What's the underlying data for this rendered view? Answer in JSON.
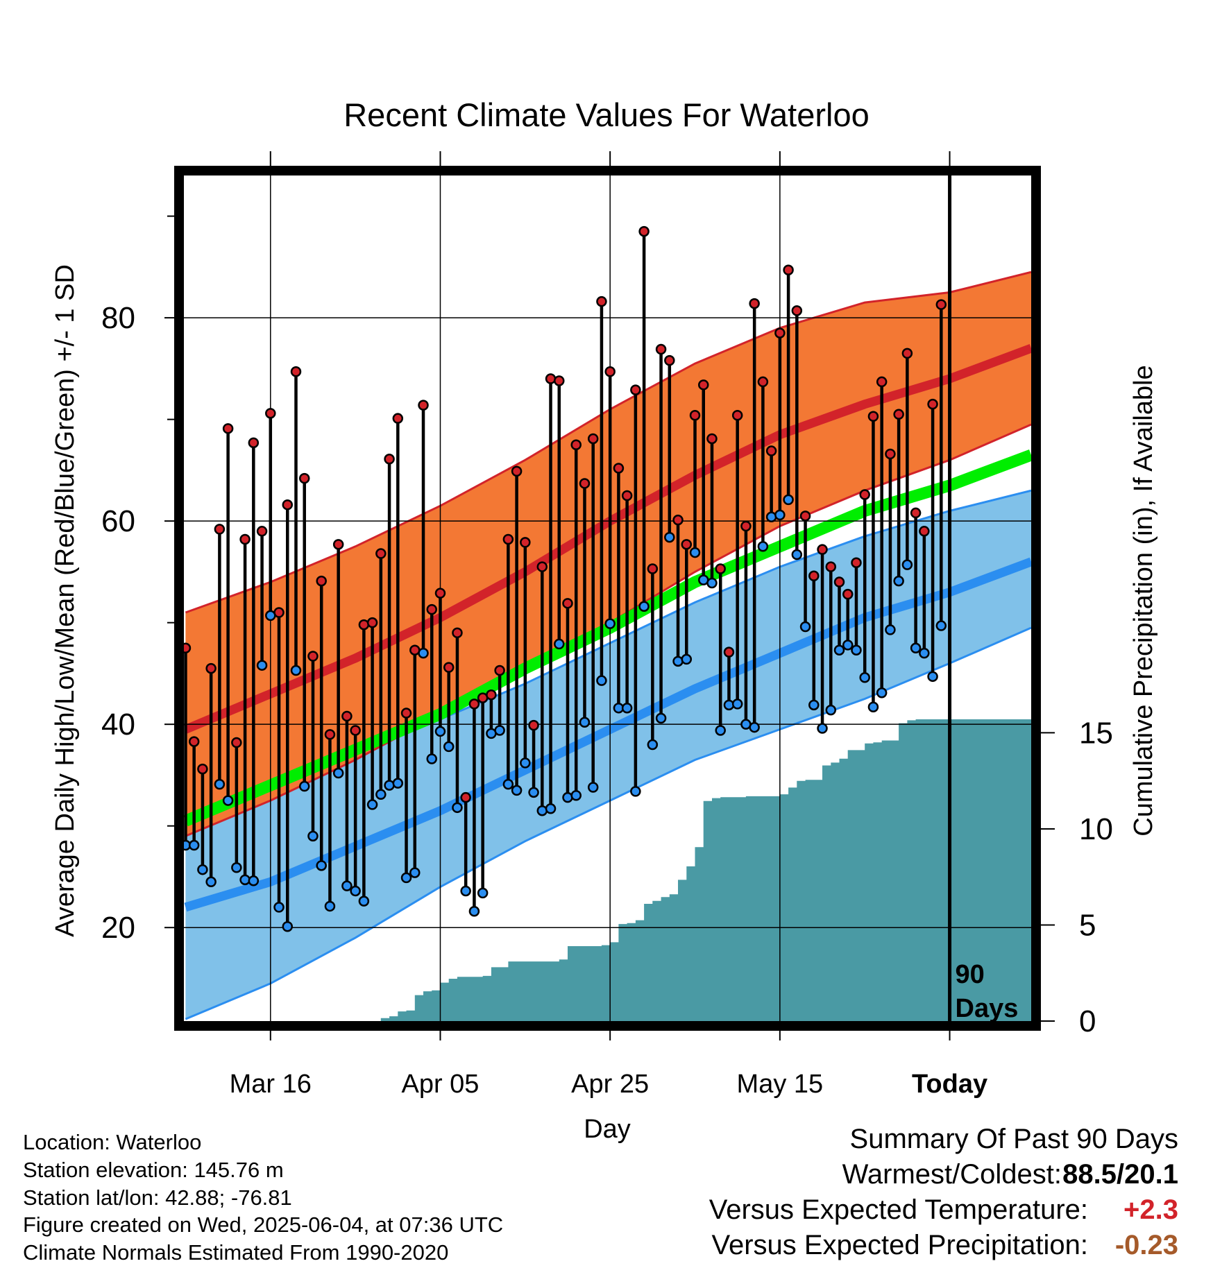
{
  "title": "Recent Climate Values For Waterloo",
  "chart_data": {
    "type": "line",
    "title": "Recent Climate Values For Waterloo",
    "xlabel": "Day",
    "ylabel": "Average Daily High/Low/Mean (Red/Blue/Green) +/- 1 SD",
    "y2label": "Cumulative Precipitation (in), If Available",
    "x_tick_labels": [
      "Mar 16",
      "Apr 05",
      "Apr 25",
      "May 15",
      "Today"
    ],
    "x_tick_day_index": [
      10,
      30,
      50,
      70,
      90
    ],
    "y_ticks": [
      20,
      40,
      60,
      80
    ],
    "y2_ticks": [
      0,
      5,
      10,
      15
    ],
    "ylim": [
      10.8,
      94
    ],
    "xlim": [
      -0.2,
      99.6
    ],
    "y2lim": [
      0,
      44
    ],
    "today_marker_label": "90 Days",
    "grid": true,
    "normal_high": {
      "day": [
        0,
        10,
        20,
        30,
        40,
        50,
        60,
        70,
        80,
        90,
        99.6
      ],
      "mean": [
        39.5,
        43,
        46.5,
        50.5,
        55,
        60,
        64.5,
        68.5,
        71.5,
        74,
        77
      ],
      "upper": [
        51,
        54,
        57.5,
        61.5,
        66,
        71,
        75.5,
        79,
        81.5,
        82.5,
        84.5
      ],
      "lower": [
        29,
        32.5,
        36.5,
        41,
        45.5,
        50,
        55,
        59.5,
        63,
        66,
        69.5
      ]
    },
    "normal_low": {
      "day": [
        0,
        10,
        20,
        30,
        40,
        50,
        60,
        70,
        80,
        90,
        99.6
      ],
      "mean": [
        22,
        24.5,
        28,
        31.5,
        35.5,
        39.5,
        43.5,
        47,
        50.5,
        53,
        56
      ],
      "upper": [
        32.5,
        34.5,
        37.5,
        40.5,
        44,
        48,
        52,
        55.5,
        58.5,
        61,
        63
      ],
      "lower": [
        11,
        14.5,
        19,
        24,
        28.5,
        32.5,
        36.5,
        39.5,
        42.5,
        46,
        49.5
      ]
    },
    "normal_mean": {
      "day": [
        0,
        10,
        20,
        30,
        40,
        50,
        60,
        70,
        80,
        90,
        99.6
      ],
      "values": [
        30.5,
        34,
        37.5,
        41,
        45.5,
        49.5,
        54,
        57.5,
        61,
        63.5,
        66.5
      ]
    },
    "daily_high": [
      47.5,
      38.3,
      35.6,
      45.5,
      59.2,
      69.1,
      38.2,
      58.2,
      67.7,
      59,
      70.6,
      51,
      61.6,
      74.7,
      64.2,
      46.7,
      54.1,
      39,
      57.7,
      40.8,
      39.4,
      49.8,
      50,
      56.8,
      66.1,
      70.1,
      41.1,
      47.3,
      71.4,
      51.3,
      52.9,
      45.6,
      49,
      32.8,
      42,
      42.6,
      42.9,
      45.3,
      58.2,
      64.9,
      57.9,
      39.9,
      55.5,
      74,
      73.8,
      51.9,
      67.5,
      63.7,
      68.1,
      81.6,
      74.7,
      65.2,
      62.5,
      72.9,
      88.5,
      55.3,
      76.9,
      75.8,
      60.1,
      57.7,
      70.4,
      73.4,
      68.1,
      55.3,
      47.1,
      70.4,
      59.5,
      81.4,
      73.7,
      66.9,
      78.5,
      84.7,
      80.7,
      60.5,
      54.6,
      57.2,
      55.5,
      54,
      52.8,
      55.9,
      62.6,
      70.3,
      73.7,
      66.6,
      70.5,
      76.5,
      60.8,
      59,
      71.5,
      81.3
    ],
    "daily_low": [
      28.1,
      28.1,
      25.7,
      24.5,
      34.1,
      32.5,
      25.9,
      24.7,
      24.6,
      45.8,
      50.7,
      22,
      20.1,
      45.3,
      33.9,
      29,
      26.1,
      22.1,
      35.2,
      24.1,
      23.6,
      22.6,
      32.1,
      33.1,
      34,
      34.2,
      24.9,
      25.4,
      47,
      36.6,
      39.3,
      37.8,
      31.8,
      23.6,
      21.6,
      23.4,
      39.1,
      39.4,
      34.1,
      33.5,
      36.2,
      33.3,
      31.5,
      31.7,
      47.9,
      32.8,
      33,
      40.2,
      33.8,
      44.3,
      49.9,
      41.6,
      41.6,
      33.4,
      51.6,
      38,
      40.6,
      58.4,
      46.2,
      46.4,
      56.9,
      54.2,
      53.9,
      39.4,
      41.9,
      42,
      40,
      39.7,
      57.5,
      60.4,
      60.6,
      62.1,
      56.7,
      49.6,
      41.9,
      39.6,
      41.4,
      47.3,
      47.8,
      47.3,
      44.6,
      41.7,
      43.1,
      49.3,
      54.1,
      55.7,
      47.5,
      47,
      44.7,
      49.7
    ],
    "cumulative_precip": {
      "day": [
        0,
        21,
        23,
        24,
        25,
        26,
        27,
        28,
        29,
        30,
        31,
        32,
        35,
        36,
        38,
        44,
        45,
        49,
        50,
        51,
        52,
        53,
        54,
        55,
        56,
        57,
        58,
        59,
        60,
        61,
        62,
        63,
        64,
        66,
        70,
        71,
        72,
        73,
        75,
        76,
        77,
        78,
        80,
        81,
        82,
        84,
        85,
        86,
        99.6
      ],
      "values": [
        0,
        0,
        0.15,
        0.25,
        0.5,
        0.55,
        1.35,
        1.55,
        1.6,
        2,
        2.2,
        2.3,
        2.35,
        2.8,
        3.1,
        3.2,
        3.9,
        3.95,
        4.1,
        5.05,
        5.1,
        5.25,
        6.1,
        6.25,
        6.45,
        6.6,
        7.35,
        8.05,
        9.05,
        11.45,
        11.6,
        11.65,
        11.65,
        11.7,
        11.8,
        12.15,
        12.5,
        12.55,
        13.3,
        13.45,
        13.65,
        14.1,
        14.45,
        14.5,
        14.6,
        15.5,
        15.65,
        15.7,
        15.7
      ]
    },
    "colors": {
      "high_band": "#f37834",
      "high_mean": "#d2232a",
      "low_band": "#80c1e9",
      "low_mean": "#2b8ef0",
      "low_band_edge": "#2b8ef0",
      "mean_line": "#00ee00",
      "precip": "#4a9aa4",
      "high_point": "#d2232a",
      "low_point": "#2b8ef0"
    }
  },
  "footer": {
    "location": "Location: Waterloo",
    "elevation": "Station elevation: 145.76 m",
    "latlon": "Station lat/lon: 42.88; -76.81",
    "created": "Figure created on Wed, 2025-06-04, at 07:36 UTC",
    "normals": "Climate Normals Estimated From 1990-2020"
  },
  "summary": {
    "heading": "Summary Of Past 90 Days",
    "warm_cold_label": "Warmest/Coldest:",
    "warm_cold_value": "88.5/20.1",
    "temp_label": "Versus Expected Temperature:",
    "temp_value": "+2.3",
    "temp_color": "#d2232a",
    "precip_label": "Versus Expected Precipitation:",
    "precip_value": "-0.23",
    "precip_color": "#a55a2a"
  }
}
